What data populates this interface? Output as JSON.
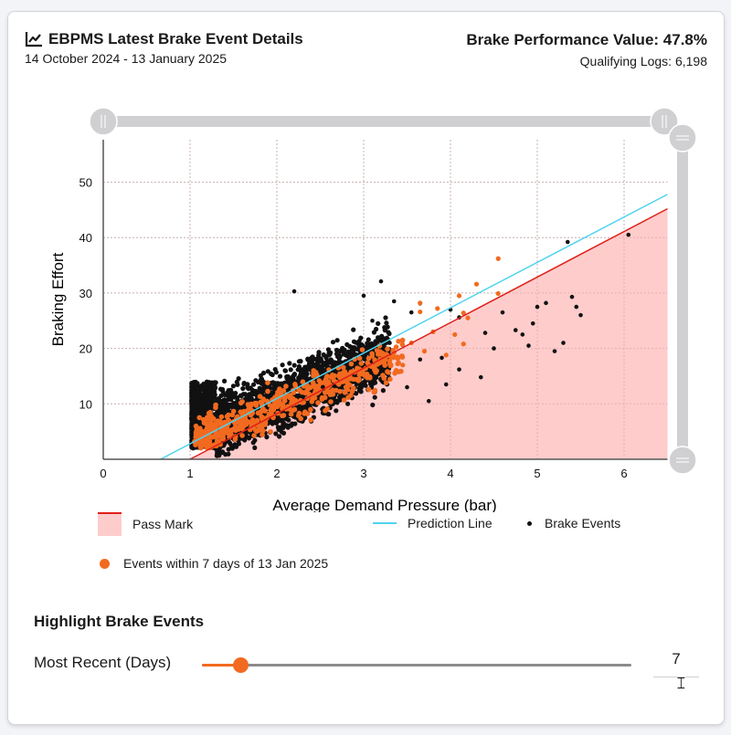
{
  "header": {
    "title": "EBPMS Latest Brake Event Details",
    "title_icon": "line-chart-icon",
    "date_range": "14 October 2024 - 13 January 2025",
    "bpv_label": "Brake Performance Value: 47.8%",
    "qualifying_logs": "Qualifying Logs: 6,198"
  },
  "colors": {
    "pass_fill": "#ffcccc",
    "pass_line": "#e0201a",
    "prediction_line": "#4fd3f0",
    "brake_event": "#111111",
    "recent_event": "#f26a1f",
    "zoom_bar": "#d0d0d3"
  },
  "chart_data": {
    "type": "scatter",
    "title": "EBPMS Latest Brake Event Details",
    "xlabel": "Average Demand Pressure (bar)",
    "ylabel": "Braking Effort",
    "xlim": [
      0,
      6.5
    ],
    "ylim": [
      0,
      58
    ],
    "x_ticks": [
      "0",
      "1",
      "2",
      "3",
      "4",
      "5",
      "6"
    ],
    "y_ticks": [
      "10",
      "20",
      "30",
      "40",
      "50"
    ],
    "grid": true,
    "legend": {
      "position": "bottom",
      "entries": [
        "Pass Mark",
        "Prediction Line",
        "Brake Events",
        "Events within 7 days of 13 Jan 2025"
      ]
    },
    "pass_mark": {
      "x": [
        1,
        6.5
      ],
      "y": [
        0,
        45.2
      ]
    },
    "prediction_line": {
      "x": [
        0.66,
        6.5
      ],
      "y": [
        0,
        47.8
      ]
    },
    "brake_events_cluster": {
      "count": 6198,
      "x_range": [
        1.0,
        3.3
      ],
      "approx_trend": "y ≈ 6.5*x + 0.5, spread ±6"
    },
    "brake_events_outliers": [
      [
        2.2,
        30.3
      ],
      [
        3.0,
        29.5
      ],
      [
        3.2,
        32.1
      ],
      [
        3.35,
        28.5
      ],
      [
        3.55,
        26.5
      ],
      [
        3.65,
        28.1
      ],
      [
        3.9,
        18.3
      ],
      [
        4.0,
        27.0
      ],
      [
        4.1,
        25.6
      ],
      [
        4.4,
        22.8
      ],
      [
        4.5,
        20.0
      ],
      [
        4.6,
        26.5
      ],
      [
        4.75,
        23.3
      ],
      [
        4.83,
        22.5
      ],
      [
        4.9,
        20.5
      ],
      [
        4.95,
        24.5
      ],
      [
        5.0,
        27.5
      ],
      [
        5.1,
        28.2
      ],
      [
        5.2,
        19.5
      ],
      [
        5.3,
        21.0
      ],
      [
        5.4,
        29.3
      ],
      [
        5.45,
        27.5
      ],
      [
        5.5,
        26.0
      ],
      [
        5.35,
        39.2
      ],
      [
        6.05,
        40.5
      ],
      [
        3.65,
        18.0
      ],
      [
        4.35,
        14.8
      ],
      [
        3.95,
        13.5
      ],
      [
        4.1,
        16.2
      ],
      [
        3.75,
        10.5
      ],
      [
        3.5,
        13.0
      ],
      [
        3.3,
        21.0
      ],
      [
        3.1,
        25.0
      ]
    ],
    "recent_events_outliers": [
      [
        3.65,
        28.2
      ],
      [
        3.65,
        26.6
      ],
      [
        3.55,
        21.0
      ],
      [
        3.8,
        23.0
      ],
      [
        3.85,
        27.2
      ],
      [
        4.1,
        29.5
      ],
      [
        4.15,
        26.4
      ],
      [
        4.3,
        31.6
      ],
      [
        4.55,
        36.2
      ],
      [
        4.55,
        29.9
      ],
      [
        4.05,
        22.5
      ],
      [
        4.15,
        20.8
      ],
      [
        4.2,
        25.5
      ],
      [
        3.7,
        19.5
      ],
      [
        3.95,
        18.8
      ],
      [
        3.45,
        17.0
      ]
    ],
    "recent_events_count_approx": 700
  },
  "legend": {
    "pass_mark": "Pass Mark",
    "prediction_line": "Prediction Line",
    "brake_events": "Brake Events",
    "recent_events": "Events within 7 days of 13 Jan 2025"
  },
  "highlight": {
    "section_title": "Highlight Brake Events",
    "slider_label": "Most Recent (Days)",
    "value": "7",
    "slider_min": 0,
    "slider_max": 90,
    "slider_percent": 9
  }
}
